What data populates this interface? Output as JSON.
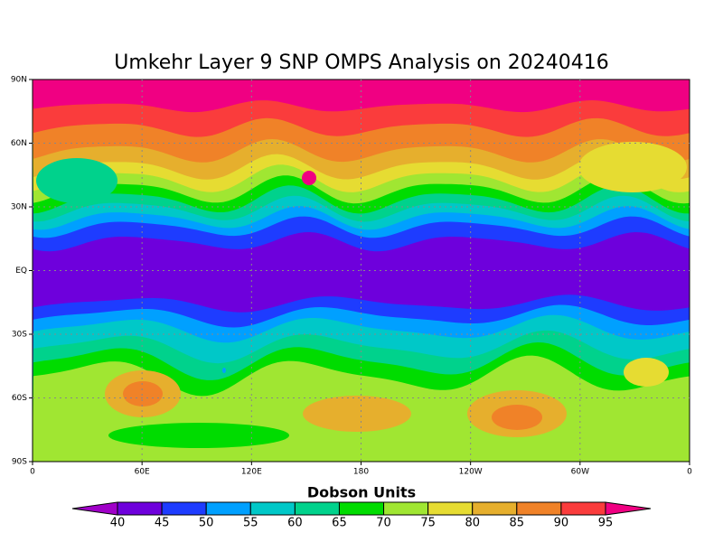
{
  "title": "Umkehr Layer 9 SNP OMPS Analysis on 20240416",
  "lat_labels": [
    "90N",
    "60N",
    "30N",
    "EQ",
    "30S",
    "60S",
    "90S"
  ],
  "lon_labels": [
    "0",
    "60E",
    "120E",
    "180",
    "120W",
    "60W",
    "0"
  ],
  "colorbar": {
    "title": "Dobson Units",
    "levels": [
      40,
      45,
      50,
      55,
      60,
      65,
      70,
      75,
      80,
      85,
      90,
      95
    ],
    "colors": [
      "#a000c8",
      "#6e00dc",
      "#1e3cff",
      "#00a0ff",
      "#00c8c8",
      "#00d28c",
      "#00dc00",
      "#a0e632",
      "#e6dc32",
      "#e6af2d",
      "#f08228",
      "#fa3c3c",
      "#f00082"
    ]
  }
}
